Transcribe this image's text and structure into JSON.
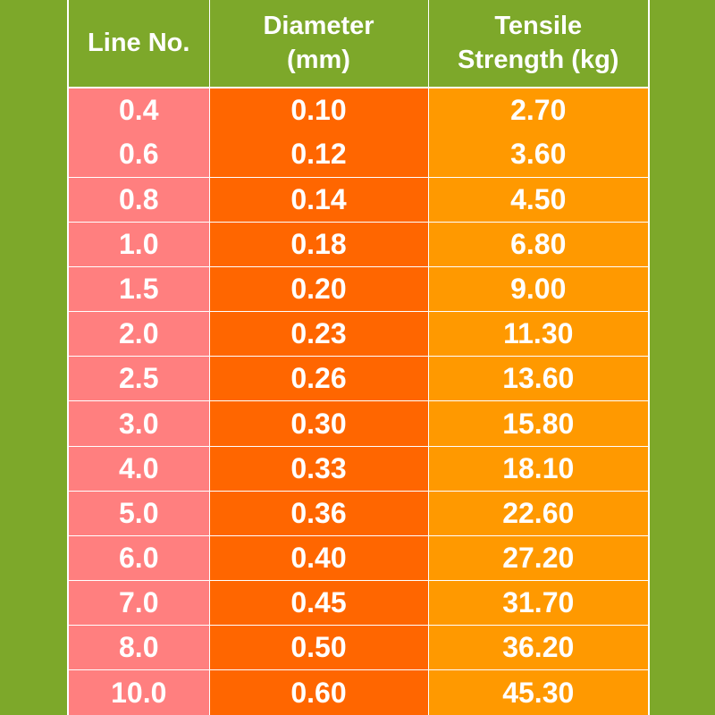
{
  "table": {
    "headers": {
      "line_no": "Line No.",
      "diameter_line1": "Diameter",
      "diameter_line2": "(mm)",
      "tensile_line1": "Tensile",
      "tensile_line2": "Strength (kg)"
    },
    "rows": [
      {
        "line_no": "0.4",
        "diameter": "0.10",
        "tensile": "2.70"
      },
      {
        "line_no": "0.6",
        "diameter": "0.12",
        "tensile": "3.60"
      },
      {
        "line_no": "0.8",
        "diameter": "0.14",
        "tensile": "4.50"
      },
      {
        "line_no": "1.0",
        "diameter": "0.18",
        "tensile": "6.80"
      },
      {
        "line_no": "1.5",
        "diameter": "0.20",
        "tensile": "9.00"
      },
      {
        "line_no": "2.0",
        "diameter": "0.23",
        "tensile": "11.30"
      },
      {
        "line_no": "2.5",
        "diameter": "0.26",
        "tensile": "13.60"
      },
      {
        "line_no": "3.0",
        "diameter": "0.30",
        "tensile": "15.80"
      },
      {
        "line_no": "4.0",
        "diameter": "0.33",
        "tensile": "18.10"
      },
      {
        "line_no": "5.0",
        "diameter": "0.36",
        "tensile": "22.60"
      },
      {
        "line_no": "6.0",
        "diameter": "0.40",
        "tensile": "27.20"
      },
      {
        "line_no": "7.0",
        "diameter": "0.45",
        "tensile": "31.70"
      },
      {
        "line_no": "8.0",
        "diameter": "0.50",
        "tensile": "36.20"
      },
      {
        "line_no": "10.0",
        "diameter": "0.60",
        "tensile": "45.30"
      }
    ]
  },
  "colors": {
    "background": "#7da82a",
    "header": "#7da82a",
    "line_no_column": "#ff7f7f",
    "diameter_column": "#ff6600",
    "tensile_column": "#ff9900",
    "text": "#ffffff"
  }
}
